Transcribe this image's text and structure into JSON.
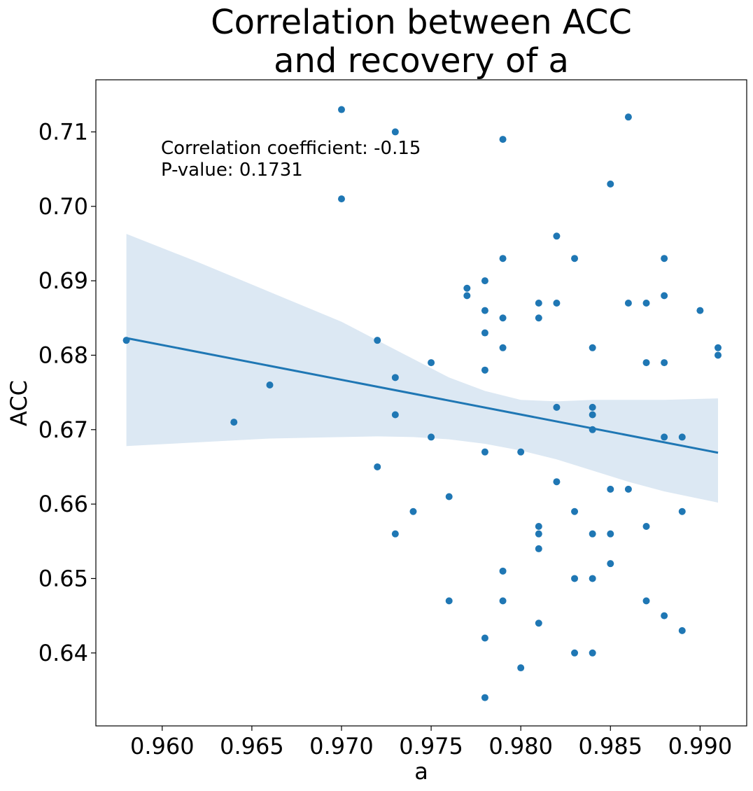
{
  "chart_data": {
    "type": "scatter",
    "title_lines": [
      "Correlation between ACC",
      "and recovery of a"
    ],
    "xlabel": "a",
    "ylabel": "ACC",
    "xlim": [
      0.9563,
      0.9926
    ],
    "ylim": [
      0.6302,
      0.717
    ],
    "xticks": [
      0.96,
      0.965,
      0.97,
      0.975,
      0.98,
      0.985,
      0.99
    ],
    "xtick_labels": [
      "0.960",
      "0.965",
      "0.970",
      "0.975",
      "0.980",
      "0.985",
      "0.990"
    ],
    "yticks": [
      0.64,
      0.65,
      0.66,
      0.67,
      0.68,
      0.69,
      0.7,
      0.71
    ],
    "ytick_labels": [
      "0.64",
      "0.65",
      "0.66",
      "0.67",
      "0.68",
      "0.69",
      "0.70",
      "0.71"
    ],
    "annotation_lines": [
      "Correlation coefficient: -0.15",
      "P-value: 0.1731"
    ],
    "grid": false,
    "point_color": "#1f77b4",
    "line_color": "#1f77b4",
    "band_color": "#dce8f3",
    "regression": {
      "x": [
        0.958,
        0.991
      ],
      "y": [
        0.6823,
        0.6669
      ]
    },
    "ci_band": {
      "x": [
        0.958,
        0.962,
        0.966,
        0.97,
        0.972,
        0.974,
        0.976,
        0.978,
        0.98,
        0.982,
        0.984,
        0.986,
        0.988,
        0.991
      ],
      "upper": [
        0.6963,
        0.6925,
        0.6885,
        0.6845,
        0.682,
        0.6795,
        0.677,
        0.6752,
        0.674,
        0.6738,
        0.674,
        0.674,
        0.674,
        0.6742
      ],
      "lower": [
        0.6678,
        0.6683,
        0.6688,
        0.669,
        0.6691,
        0.669,
        0.6687,
        0.6681,
        0.6672,
        0.666,
        0.6645,
        0.663,
        0.6617,
        0.6602
      ]
    },
    "points": [
      {
        "x": 0.958,
        "y": 0.682
      },
      {
        "x": 0.964,
        "y": 0.671
      },
      {
        "x": 0.966,
        "y": 0.676
      },
      {
        "x": 0.97,
        "y": 0.713
      },
      {
        "x": 0.97,
        "y": 0.701
      },
      {
        "x": 0.972,
        "y": 0.682
      },
      {
        "x": 0.972,
        "y": 0.665
      },
      {
        "x": 0.973,
        "y": 0.71
      },
      {
        "x": 0.973,
        "y": 0.677
      },
      {
        "x": 0.973,
        "y": 0.672
      },
      {
        "x": 0.973,
        "y": 0.656
      },
      {
        "x": 0.974,
        "y": 0.659
      },
      {
        "x": 0.975,
        "y": 0.679
      },
      {
        "x": 0.975,
        "y": 0.669
      },
      {
        "x": 0.976,
        "y": 0.661
      },
      {
        "x": 0.976,
        "y": 0.647
      },
      {
        "x": 0.977,
        "y": 0.689
      },
      {
        "x": 0.977,
        "y": 0.688
      },
      {
        "x": 0.978,
        "y": 0.69
      },
      {
        "x": 0.978,
        "y": 0.686
      },
      {
        "x": 0.978,
        "y": 0.683
      },
      {
        "x": 0.978,
        "y": 0.678
      },
      {
        "x": 0.978,
        "y": 0.667
      },
      {
        "x": 0.978,
        "y": 0.642
      },
      {
        "x": 0.978,
        "y": 0.634
      },
      {
        "x": 0.979,
        "y": 0.709
      },
      {
        "x": 0.979,
        "y": 0.693
      },
      {
        "x": 0.979,
        "y": 0.685
      },
      {
        "x": 0.979,
        "y": 0.681
      },
      {
        "x": 0.979,
        "y": 0.651
      },
      {
        "x": 0.979,
        "y": 0.647
      },
      {
        "x": 0.98,
        "y": 0.667
      },
      {
        "x": 0.98,
        "y": 0.638
      },
      {
        "x": 0.981,
        "y": 0.687
      },
      {
        "x": 0.981,
        "y": 0.685
      },
      {
        "x": 0.981,
        "y": 0.657
      },
      {
        "x": 0.981,
        "y": 0.656
      },
      {
        "x": 0.981,
        "y": 0.654
      },
      {
        "x": 0.981,
        "y": 0.644
      },
      {
        "x": 0.982,
        "y": 0.696
      },
      {
        "x": 0.982,
        "y": 0.687
      },
      {
        "x": 0.982,
        "y": 0.673
      },
      {
        "x": 0.982,
        "y": 0.663
      },
      {
        "x": 0.983,
        "y": 0.693
      },
      {
        "x": 0.983,
        "y": 0.659
      },
      {
        "x": 0.983,
        "y": 0.65
      },
      {
        "x": 0.983,
        "y": 0.64
      },
      {
        "x": 0.984,
        "y": 0.681
      },
      {
        "x": 0.984,
        "y": 0.673
      },
      {
        "x": 0.984,
        "y": 0.672
      },
      {
        "x": 0.984,
        "y": 0.67
      },
      {
        "x": 0.984,
        "y": 0.656
      },
      {
        "x": 0.984,
        "y": 0.65
      },
      {
        "x": 0.984,
        "y": 0.64
      },
      {
        "x": 0.985,
        "y": 0.703
      },
      {
        "x": 0.985,
        "y": 0.662
      },
      {
        "x": 0.985,
        "y": 0.656
      },
      {
        "x": 0.985,
        "y": 0.652
      },
      {
        "x": 0.986,
        "y": 0.712
      },
      {
        "x": 0.986,
        "y": 0.687
      },
      {
        "x": 0.986,
        "y": 0.662
      },
      {
        "x": 0.987,
        "y": 0.687
      },
      {
        "x": 0.987,
        "y": 0.679
      },
      {
        "x": 0.987,
        "y": 0.657
      },
      {
        "x": 0.987,
        "y": 0.647
      },
      {
        "x": 0.988,
        "y": 0.693
      },
      {
        "x": 0.988,
        "y": 0.688
      },
      {
        "x": 0.988,
        "y": 0.679
      },
      {
        "x": 0.988,
        "y": 0.669
      },
      {
        "x": 0.988,
        "y": 0.645
      },
      {
        "x": 0.989,
        "y": 0.669
      },
      {
        "x": 0.989,
        "y": 0.659
      },
      {
        "x": 0.989,
        "y": 0.643
      },
      {
        "x": 0.99,
        "y": 0.686
      },
      {
        "x": 0.991,
        "y": 0.681
      },
      {
        "x": 0.991,
        "y": 0.68
      }
    ]
  }
}
